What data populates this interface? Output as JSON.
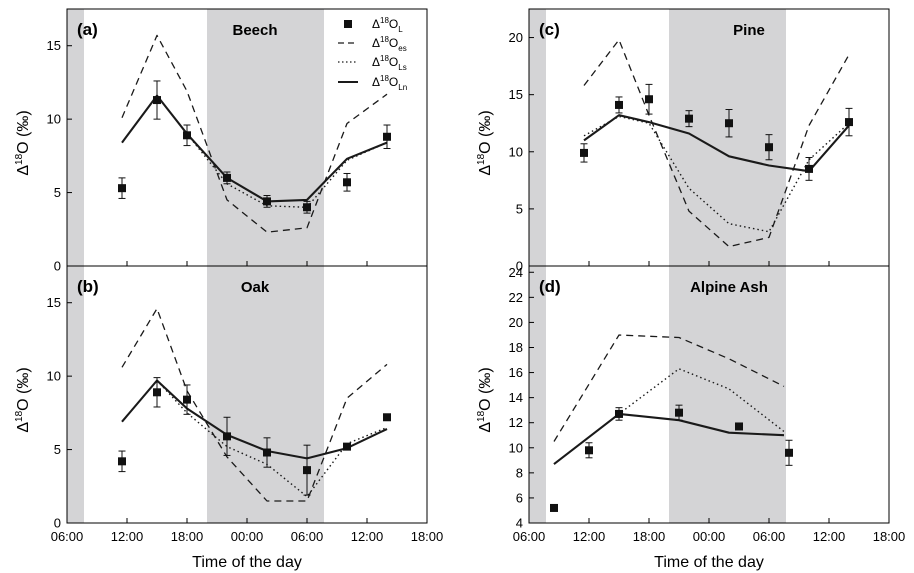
{
  "colors": {
    "shade": "#d4d4d6",
    "line": "#1a1a1a",
    "marker": "#111111"
  },
  "common": {
    "xlabel": "Time of the day",
    "ylabel_main": "Δ",
    "ylabel_sup": "18",
    "ylabel_end": "O (‰)",
    "x_tick_labels": [
      "06:00",
      "12:00",
      "18:00",
      "00:00",
      "06:00",
      "12:00",
      "18:00"
    ]
  },
  "legend": {
    "placement": "top-right of panel (a)",
    "entries": [
      {
        "key": "L",
        "base": "Δ",
        "sup": "18",
        "mid": "O",
        "sub": "L",
        "style": "marker"
      },
      {
        "key": "es",
        "base": "Δ",
        "sup": "18",
        "mid": "O",
        "sub": "es",
        "style": "dashed"
      },
      {
        "key": "Ls",
        "base": "Δ",
        "sup": "18",
        "mid": "O",
        "sub": "Ls",
        "style": "dotted"
      },
      {
        "key": "Ln",
        "base": "Δ",
        "sup": "18",
        "mid": "O",
        "sub": "Ln",
        "style": "solid"
      }
    ]
  },
  "chart_data": [
    {
      "type": "line",
      "panel": "(a)",
      "title": "Beech",
      "x_unit": "hours from 06:00 day 1",
      "xlim": [
        0,
        36
      ],
      "ylim": [
        0,
        17.5
      ],
      "y_ticks": [
        0,
        5,
        10,
        15
      ],
      "shaded": [
        [
          0,
          1.7
        ],
        [
          14,
          25.7
        ]
      ],
      "series": [
        {
          "name": "Δ18O_es",
          "style": "dashed",
          "x": [
            5.5,
            9,
            12,
            16,
            20,
            24,
            28,
            32
          ],
          "y": [
            10.1,
            15.7,
            11.9,
            4.5,
            2.3,
            2.6,
            9.7,
            11.7
          ]
        },
        {
          "name": "Δ18O_Ls",
          "style": "dotted",
          "x": [
            5.5,
            9,
            12,
            16,
            20,
            24,
            28,
            32
          ],
          "y": [
            8.4,
            11.6,
            9.0,
            5.6,
            4.1,
            4.0,
            7.2,
            8.4
          ]
        },
        {
          "name": "Δ18O_Ln",
          "style": "solid",
          "x": [
            5.5,
            9,
            12,
            16,
            20,
            24,
            28,
            32
          ],
          "y": [
            8.4,
            11.6,
            9.0,
            6.0,
            4.4,
            4.5,
            7.3,
            8.4
          ]
        },
        {
          "name": "Δ18O_L",
          "style": "marker",
          "x": [
            5.5,
            9,
            12,
            16,
            20,
            24,
            28,
            32
          ],
          "y": [
            5.3,
            11.3,
            8.9,
            6.0,
            4.4,
            4.0,
            5.7,
            8.8
          ],
          "err": [
            0.7,
            1.3,
            0.7,
            0.4,
            0.4,
            0.4,
            0.6,
            0.8
          ]
        }
      ]
    },
    {
      "type": "line",
      "panel": "(b)",
      "title": "Oak",
      "x_unit": "hours from 06:00 day 1",
      "xlim": [
        0,
        36
      ],
      "ylim": [
        0,
        17.5
      ],
      "y_ticks": [
        0,
        5,
        10,
        15
      ],
      "shaded": [
        [
          0,
          1.7
        ],
        [
          14,
          25.7
        ]
      ],
      "series": [
        {
          "name": "Δ18O_es",
          "style": "dashed",
          "x": [
            5.5,
            9,
            12,
            16,
            20,
            24,
            28,
            32
          ],
          "y": [
            10.6,
            14.6,
            9.0,
            4.5,
            1.5,
            1.5,
            8.5,
            10.8
          ]
        },
        {
          "name": "Δ18O_Ls",
          "style": "dotted",
          "x": [
            5.5,
            9,
            12,
            16,
            20,
            24,
            28,
            32
          ],
          "y": [
            6.9,
            9.7,
            7.5,
            5.2,
            4.0,
            1.8,
            5.4,
            6.5
          ]
        },
        {
          "name": "Δ18O_Ln",
          "style": "solid",
          "x": [
            5.5,
            9,
            12,
            16,
            20,
            24,
            28,
            32
          ],
          "y": [
            6.9,
            9.7,
            7.8,
            6.0,
            4.9,
            4.4,
            5.1,
            6.4
          ]
        },
        {
          "name": "Δ18O_L",
          "style": "marker",
          "x": [
            5.5,
            9,
            12,
            16,
            20,
            24,
            28,
            32
          ],
          "y": [
            4.2,
            8.9,
            8.4,
            5.9,
            4.8,
            3.6,
            5.2,
            7.2
          ],
          "err": [
            0.7,
            1.0,
            1.0,
            1.3,
            1.0,
            1.7,
            0.2,
            0.2
          ]
        }
      ]
    },
    {
      "type": "line",
      "panel": "(c)",
      "title": "Pine",
      "x_unit": "hours from 06:00 day 1",
      "xlim": [
        0,
        36
      ],
      "ylim": [
        0,
        22.5
      ],
      "y_ticks": [
        0,
        5,
        10,
        15,
        20
      ],
      "shaded": [
        [
          0,
          1.7
        ],
        [
          14,
          25.7
        ]
      ],
      "series": [
        {
          "name": "Δ18O_es",
          "style": "dashed",
          "x": [
            5.5,
            9,
            12,
            16,
            20,
            24,
            28,
            32
          ],
          "y": [
            15.8,
            19.8,
            13.2,
            4.8,
            1.7,
            2.5,
            12.3,
            18.5
          ]
        },
        {
          "name": "Δ18O_Ls",
          "style": "dotted",
          "x": [
            5.5,
            9,
            12,
            16,
            20,
            24,
            28,
            32
          ],
          "y": [
            11.4,
            13.1,
            12.5,
            6.8,
            3.7,
            3.0,
            9.3,
            12.5
          ]
        },
        {
          "name": "Δ18O_Ln",
          "style": "solid",
          "x": [
            5.5,
            9,
            12,
            16,
            20,
            24,
            28,
            32
          ],
          "y": [
            11.0,
            13.2,
            12.6,
            11.6,
            9.6,
            8.8,
            8.3,
            12.3
          ]
        },
        {
          "name": "Δ18O_L",
          "style": "marker",
          "x": [
            5.5,
            9,
            12,
            16,
            20,
            24,
            28,
            32
          ],
          "y": [
            9.9,
            14.1,
            14.6,
            12.9,
            12.5,
            10.4,
            8.5,
            12.6
          ],
          "err": [
            0.8,
            0.7,
            1.3,
            0.7,
            1.2,
            1.1,
            1.0,
            1.2
          ]
        }
      ]
    },
    {
      "type": "line",
      "panel": "(d)",
      "title": "Alpine Ash",
      "x_unit": "hours from 06:00 day 1",
      "xlim": [
        0,
        36
      ],
      "ylim": [
        4,
        24.5
      ],
      "y_ticks": [
        4,
        6,
        8,
        10,
        12,
        14,
        16,
        18,
        20,
        22,
        24
      ],
      "shaded": [
        [
          0,
          1.7
        ],
        [
          14,
          25.7
        ]
      ],
      "series": [
        {
          "name": "Δ18O_es",
          "style": "dashed",
          "x": [
            2.5,
            9,
            15,
            20,
            25.5
          ],
          "y": [
            10.5,
            19.0,
            18.8,
            17.1,
            14.9
          ]
        },
        {
          "name": "Δ18O_Ls",
          "style": "dotted",
          "x": [
            2.5,
            9,
            15,
            20,
            25.5
          ],
          "y": [
            8.7,
            12.7,
            16.3,
            14.7,
            11.3
          ]
        },
        {
          "name": "Δ18O_Ln",
          "style": "solid",
          "x": [
            2.5,
            9,
            15,
            20,
            25.5
          ],
          "y": [
            8.7,
            12.7,
            12.2,
            11.2,
            11.0
          ]
        },
        {
          "name": "Δ18O_L",
          "style": "marker",
          "x": [
            2.5,
            6,
            9,
            15,
            21,
            26
          ],
          "y": [
            5.2,
            9.8,
            12.7,
            12.8,
            11.7,
            9.6
          ],
          "err": [
            0,
            0.6,
            0.5,
            0.6,
            0.2,
            1.0
          ]
        }
      ]
    }
  ]
}
